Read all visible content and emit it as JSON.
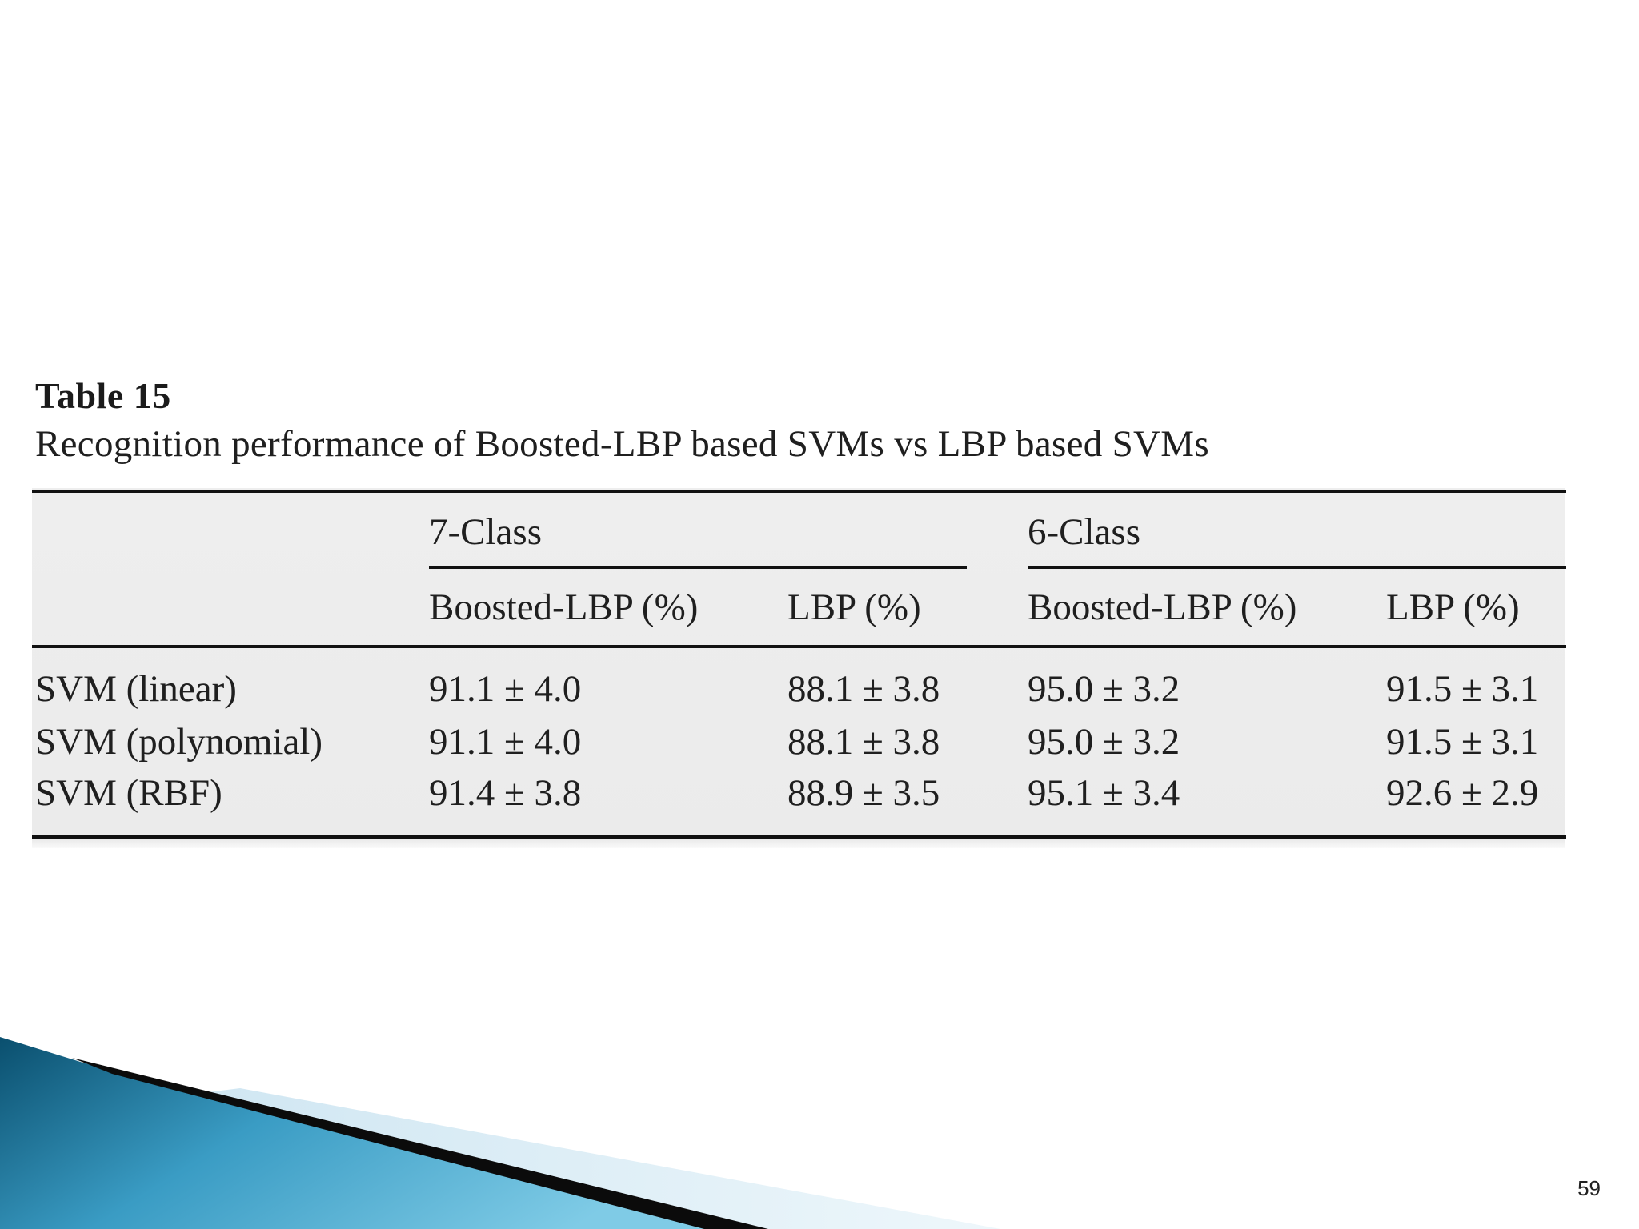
{
  "table": {
    "label": "Table 15",
    "caption": "Recognition performance of Boosted-LBP based SVMs vs LBP based SVMs",
    "group_headers": [
      "7-Class",
      "6-Class"
    ],
    "sub_headers": [
      "Boosted-LBP (%)",
      "LBP (%)",
      "Boosted-LBP (%)",
      "LBP (%)"
    ],
    "rows": [
      {
        "label": "SVM (linear)",
        "values": [
          "91.1 ± 4.0",
          "88.1 ± 3.8",
          "95.0 ± 3.2",
          "91.5 ± 3.1"
        ]
      },
      {
        "label": "SVM (polynomial)",
        "values": [
          "91.1 ± 4.0",
          "88.1 ± 3.8",
          "95.0 ± 3.2",
          "91.5 ± 3.1"
        ]
      },
      {
        "label": "SVM (RBF)",
        "values": [
          "91.4 ± 3.8",
          "88.9 ± 3.5",
          "95.1 ± 3.4",
          "92.6 ± 2.9"
        ]
      }
    ]
  },
  "page_number": "59",
  "colors": {
    "accent_dark": "#0a4f6e",
    "accent_light": "#5fb7d8",
    "rule": "#111111"
  }
}
